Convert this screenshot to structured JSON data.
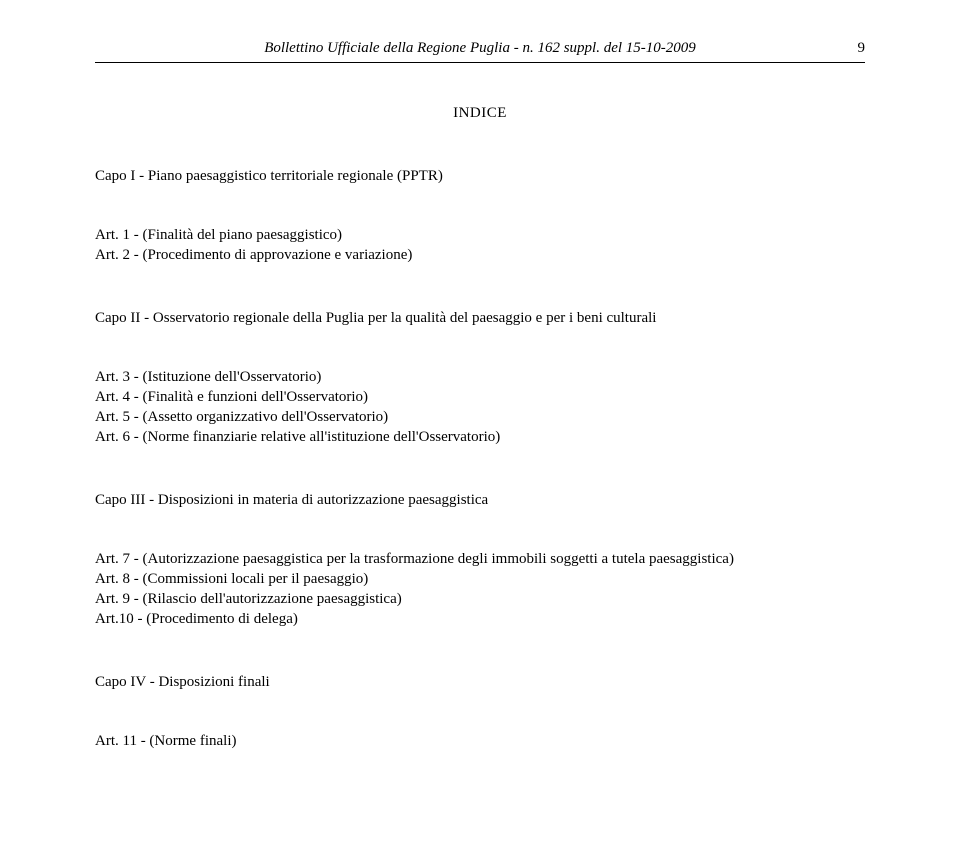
{
  "header": {
    "italic_text": "Bollettino Ufficiale della Regione Puglia - n. 162 suppl. del 15-10-2009",
    "page_number": "9"
  },
  "indice_title": "INDICE",
  "sections": {
    "capo1": {
      "title": "Capo I - Piano paesaggistico territoriale regionale (PPTR)",
      "articles": [
        "Art. 1 - (Finalità del piano paesaggistico)",
        "Art. 2 - (Procedimento di approvazione e variazione)"
      ]
    },
    "capo2": {
      "title": "Capo II - Osservatorio regionale della Puglia per la qualità del paesaggio e per i beni culturali",
      "articles": [
        "Art. 3 - (Istituzione dell'Osservatorio)",
        "Art. 4 - (Finalità e funzioni dell'Osservatorio)",
        "Art. 5 - (Assetto organizzativo dell'Osservatorio)",
        "Art. 6 - (Norme finanziarie relative all'istituzione dell'Osservatorio)"
      ]
    },
    "capo3": {
      "title": "Capo III - Disposizioni in materia di autorizzazione paesaggistica",
      "articles": [
        "Art. 7 - (Autorizzazione paesaggistica per la trasformazione degli immobili soggetti a tutela paesaggistica)",
        "Art. 8 - (Commissioni locali per il paesaggio)",
        "Art. 9 - (Rilascio dell'autorizzazione paesaggistica)",
        "Art.10 - (Procedimento di delega)"
      ]
    },
    "capo4": {
      "title": "Capo IV - Disposizioni finali",
      "articles": [
        "Art. 11 - (Norme finali)"
      ]
    }
  }
}
